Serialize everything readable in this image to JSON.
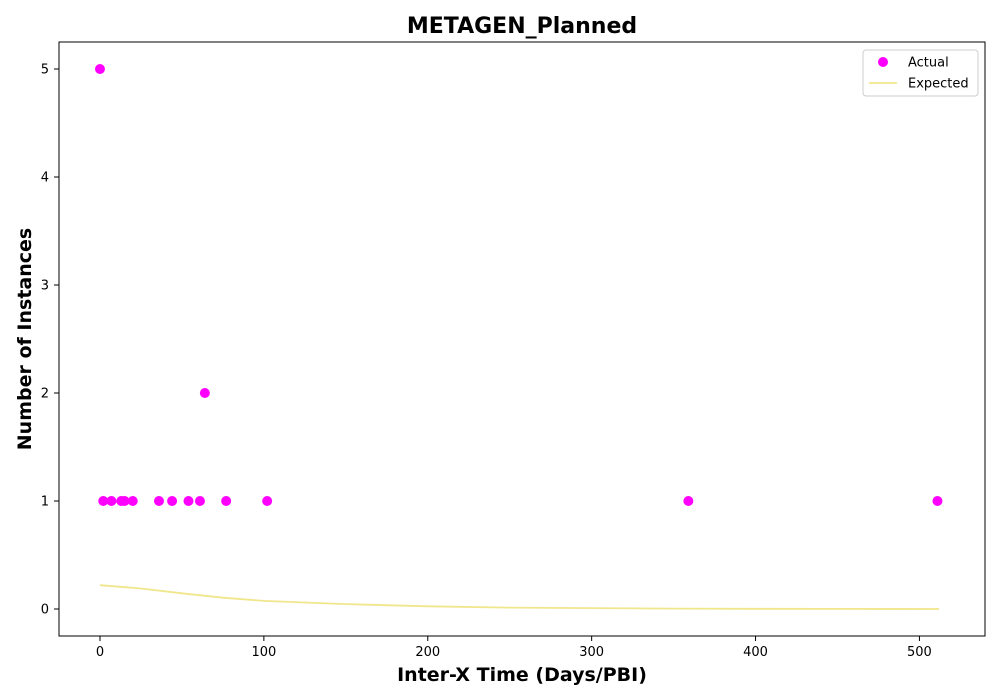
{
  "chart_data": {
    "type": "scatter",
    "title": "METAGEN_Planned",
    "xlabel": "Inter-X Time (Days/PBI)",
    "ylabel": "Number of Instances",
    "xlim": [
      -25,
      540
    ],
    "ylim": [
      -0.25,
      5.25
    ],
    "xticks": [
      0,
      100,
      200,
      300,
      400,
      500
    ],
    "yticks": [
      0,
      1,
      2,
      3,
      4,
      5
    ],
    "grid": false,
    "legend_position": "top-right",
    "series": [
      {
        "name": "Actual",
        "kind": "scatter",
        "color": "#ff00ff",
        "points": [
          {
            "x": 0,
            "y": 5
          },
          {
            "x": 2,
            "y": 1
          },
          {
            "x": 7,
            "y": 1
          },
          {
            "x": 13,
            "y": 1
          },
          {
            "x": 15,
            "y": 1
          },
          {
            "x": 20,
            "y": 1
          },
          {
            "x": 36,
            "y": 1
          },
          {
            "x": 44,
            "y": 1
          },
          {
            "x": 54,
            "y": 1
          },
          {
            "x": 61,
            "y": 1
          },
          {
            "x": 64,
            "y": 2
          },
          {
            "x": 77,
            "y": 1
          },
          {
            "x": 102,
            "y": 1
          },
          {
            "x": 359,
            "y": 1
          },
          {
            "x": 511,
            "y": 1
          }
        ]
      },
      {
        "name": "Expected",
        "kind": "line",
        "color": "#f0e68c",
        "points": [
          {
            "x": 0,
            "y": 0.22
          },
          {
            "x": 25,
            "y": 0.19
          },
          {
            "x": 50,
            "y": 0.145
          },
          {
            "x": 75,
            "y": 0.105
          },
          {
            "x": 100,
            "y": 0.075
          },
          {
            "x": 150,
            "y": 0.045
          },
          {
            "x": 200,
            "y": 0.025
          },
          {
            "x": 250,
            "y": 0.013
          },
          {
            "x": 300,
            "y": 0.008
          },
          {
            "x": 350,
            "y": 0.004
          },
          {
            "x": 400,
            "y": 0.002
          },
          {
            "x": 450,
            "y": 0.001
          },
          {
            "x": 512,
            "y": 0.0
          }
        ]
      }
    ]
  }
}
